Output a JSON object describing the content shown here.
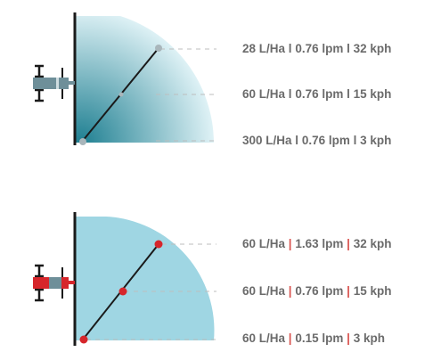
{
  "colors": {
    "gradient_dark": "#1e7f91",
    "gradient_light": "#dff2f6",
    "fan_flat": "#9fd6e3",
    "dot_top_panel": "#a9b6bb",
    "dot_bottom_panel": "#d6262b",
    "tractor_top": "#6e8f99",
    "tractor_bottom": "#d6262b",
    "boom_line": "#1a1a1a",
    "dashed_line": "#bdbdbd",
    "label_text": "#6b6b6b",
    "accent_separator": "#d9534f"
  },
  "top_panel": {
    "rows": [
      {
        "rate": "28 L/Ha",
        "flow": "0.76 lpm",
        "speed": "32 kph",
        "sep": "l"
      },
      {
        "rate": "60 L/Ha",
        "flow": "0.76 lpm",
        "speed": "15 kph",
        "sep": "l"
      },
      {
        "rate": "300 L/Ha",
        "flow": "0.76 lpm",
        "speed": "3 kph",
        "sep": "l"
      }
    ]
  },
  "bottom_panel": {
    "rows": [
      {
        "rate": "60 L/Ha",
        "flow": "1.63 lpm",
        "speed": "32 kph",
        "sep": "|"
      },
      {
        "rate": "60 L/Ha",
        "flow": "0.76 lpm",
        "speed": "15 kph",
        "sep": "|"
      },
      {
        "rate": "60 L/Ha",
        "flow": "0.15 lpm",
        "speed": "3 kph",
        "sep": "|"
      }
    ]
  }
}
